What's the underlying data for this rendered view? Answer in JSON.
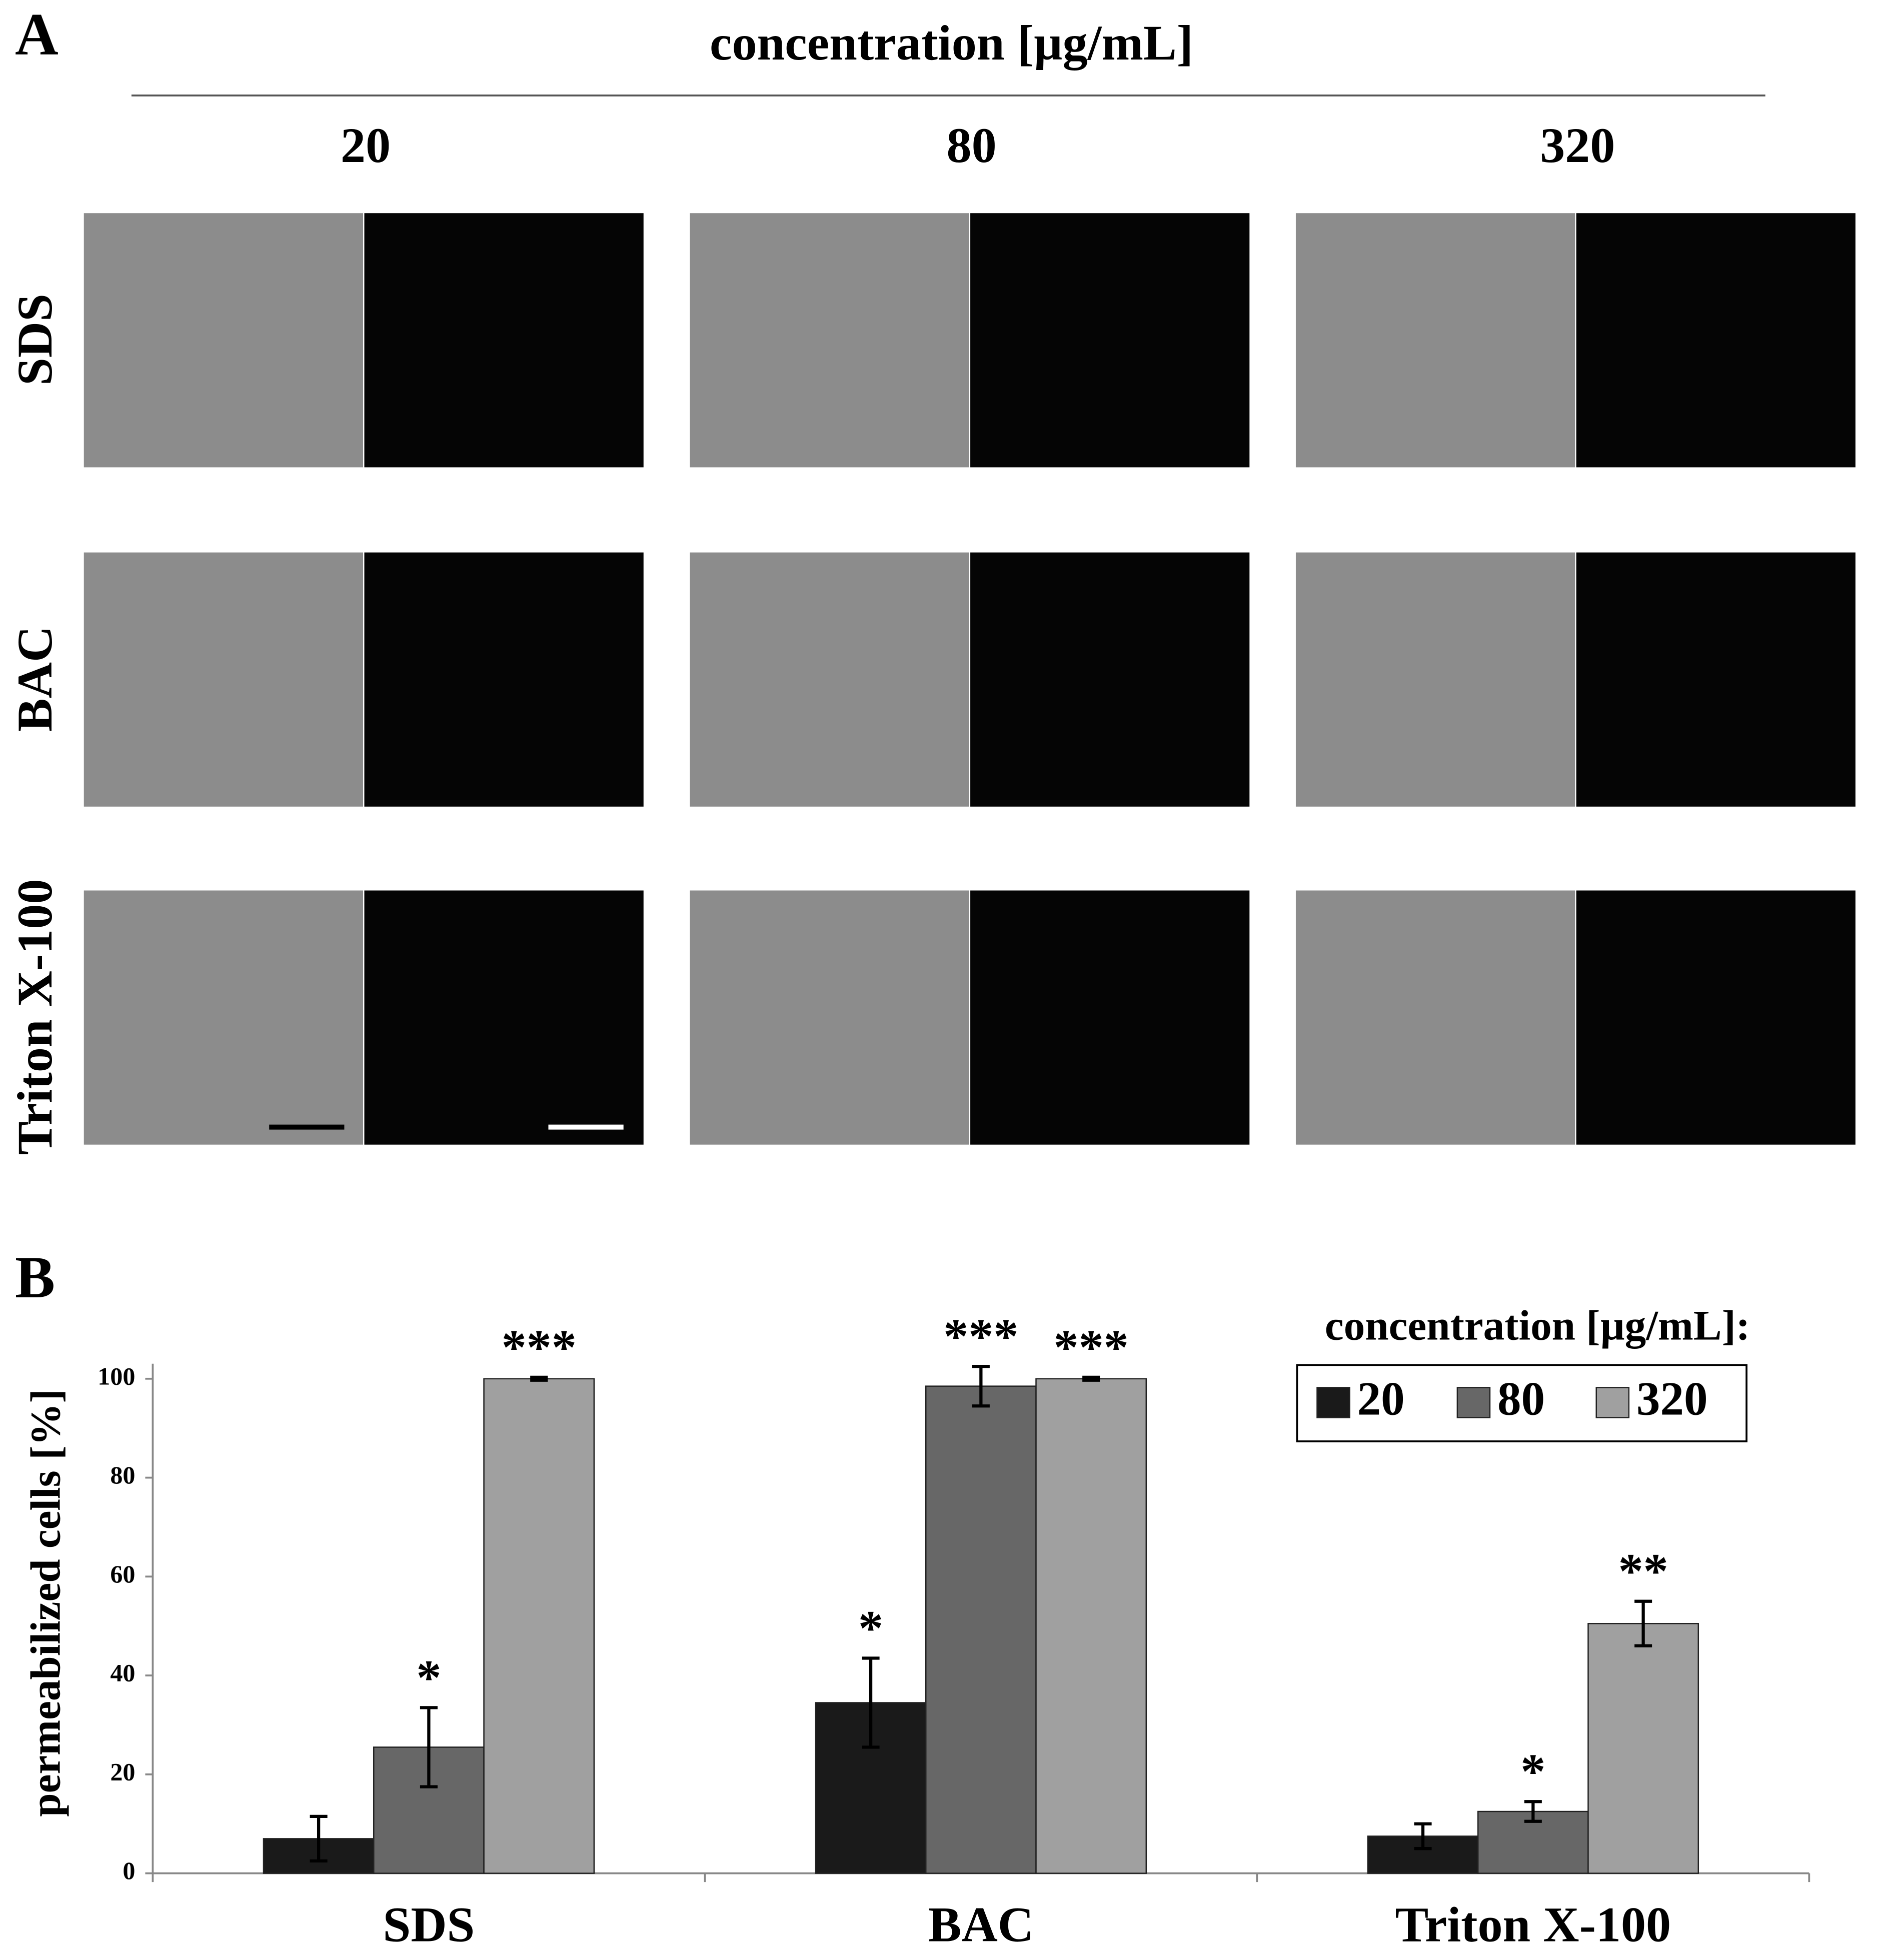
{
  "panel_a": {
    "label": "A",
    "title": "concentration [µg/mL]",
    "columns": [
      "20",
      "80",
      "320"
    ],
    "rows": [
      "SDS",
      "BAC",
      "Triton X-100"
    ]
  },
  "chart_data": {
    "type": "bar",
    "panel_label": "B",
    "y_label": "permeabilized cells [%]",
    "categories": [
      "SDS",
      "BAC",
      "Triton X-100"
    ],
    "legend_title": "concentration [µg/mL]:",
    "series": [
      {
        "name": "20",
        "color": "#1a1a1a",
        "values": [
          7,
          34.5,
          7.5
        ],
        "errors": [
          4.5,
          9,
          2.5
        ],
        "annotations": [
          null,
          "*",
          null
        ]
      },
      {
        "name": "80",
        "color": "#676767",
        "values": [
          25.5,
          98.5,
          12.5
        ],
        "errors": [
          8,
          4,
          2
        ],
        "annotations": [
          "*",
          "***",
          "*"
        ]
      },
      {
        "name": "320",
        "color": "#a0a0a0",
        "values": [
          100,
          100,
          50.5
        ],
        "errors": [
          0.3,
          0.3,
          4.5
        ],
        "annotations": [
          "***",
          "***",
          "**"
        ]
      }
    ],
    "ylim": [
      0,
      100
    ],
    "yticks": [
      0,
      20,
      40,
      60,
      80,
      100
    ],
    "grid": false,
    "legend": "top-right"
  }
}
